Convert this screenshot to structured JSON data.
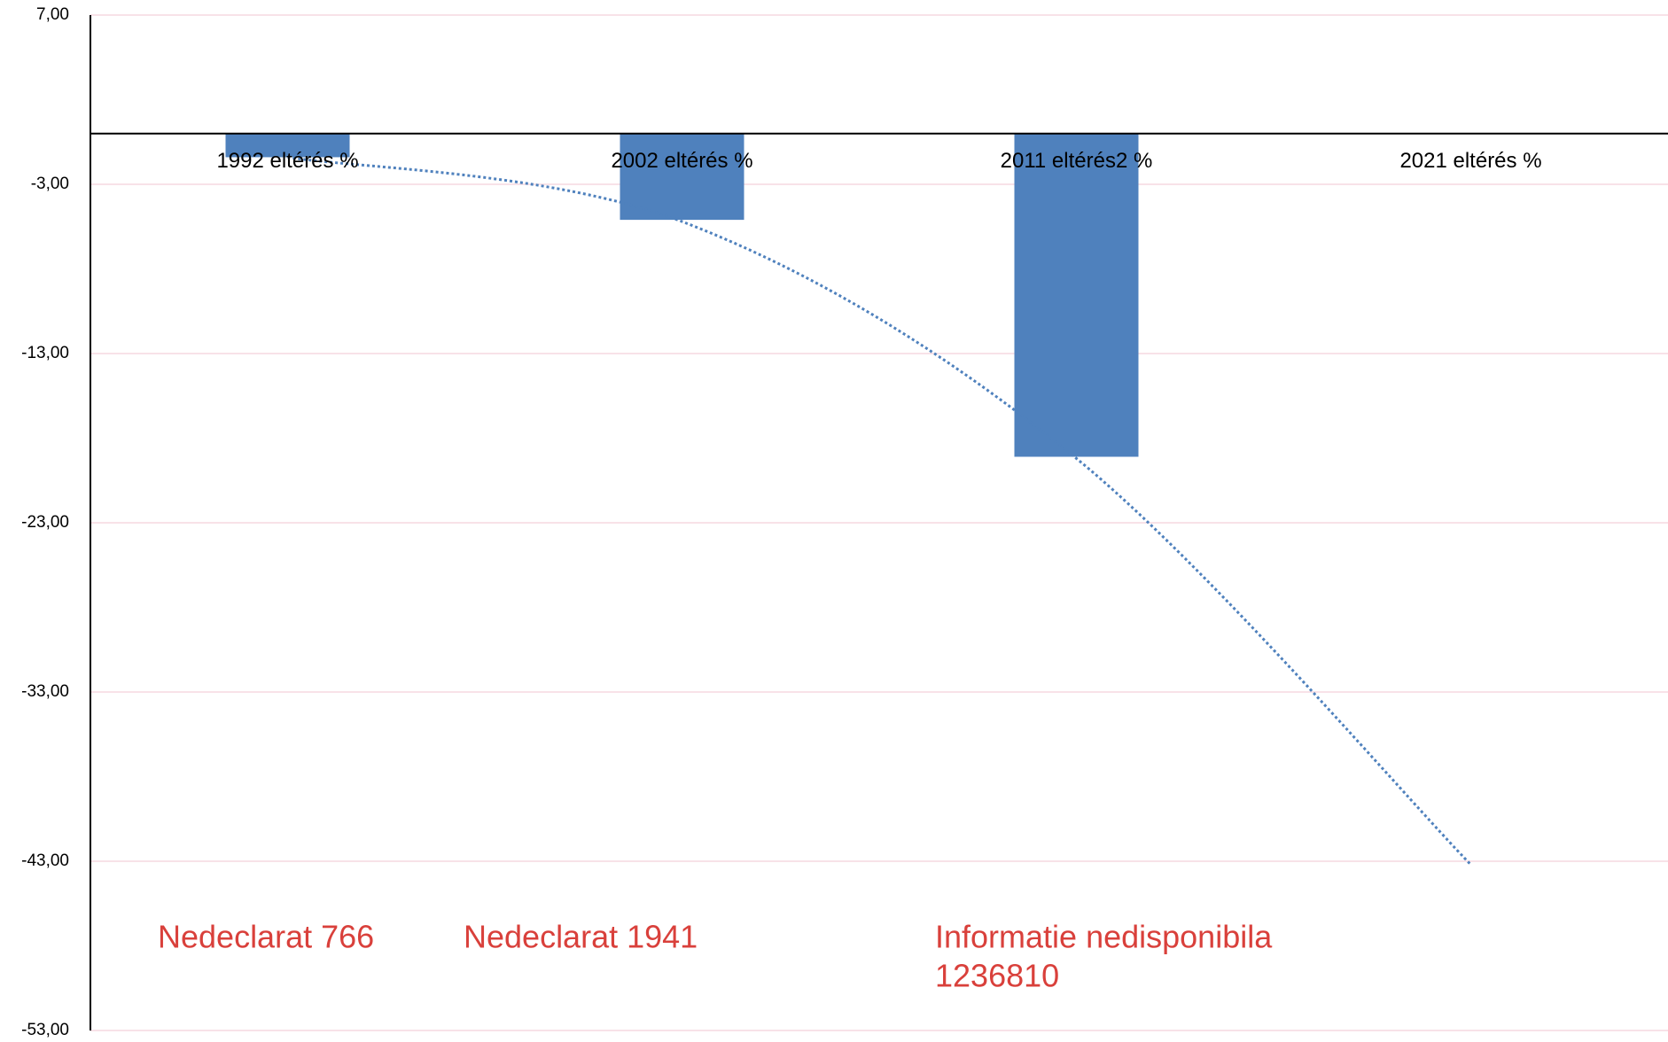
{
  "chart_data": {
    "type": "bar",
    "categories": [
      "1992 eltérés %",
      "2002 eltérés %",
      "2011 eltérés2 %",
      "2021 eltérés %"
    ],
    "values": [
      -1.4,
      -5.1,
      -19.1,
      null
    ],
    "color": "#4f81bd",
    "trendline": {
      "color": "#4f81bd",
      "values": [
        -1.4,
        -5.2,
        -19.2,
        -43.2
      ]
    },
    "ylim": [
      -53,
      7
    ],
    "yticks": [
      {
        "value": 7,
        "label": "7,00"
      },
      {
        "value": -3,
        "label": "-3,00"
      },
      {
        "value": -13,
        "label": "-13,00"
      },
      {
        "value": -23,
        "label": "-23,00"
      },
      {
        "value": -33,
        "label": "-33,00"
      },
      {
        "value": -43,
        "label": "-43,00"
      },
      {
        "value": -53,
        "label": "-53,00"
      }
    ],
    "grid": true,
    "annotations": [
      {
        "lines": [
          "Nedeclarat 766"
        ],
        "color": "#d9403b"
      },
      {
        "lines": [
          "Nedeclarat 1941"
        ],
        "color": "#d9403b"
      },
      {
        "lines": [
          "Informatie nedisponibila",
          "1236810"
        ],
        "color": "#d9403b"
      }
    ]
  }
}
